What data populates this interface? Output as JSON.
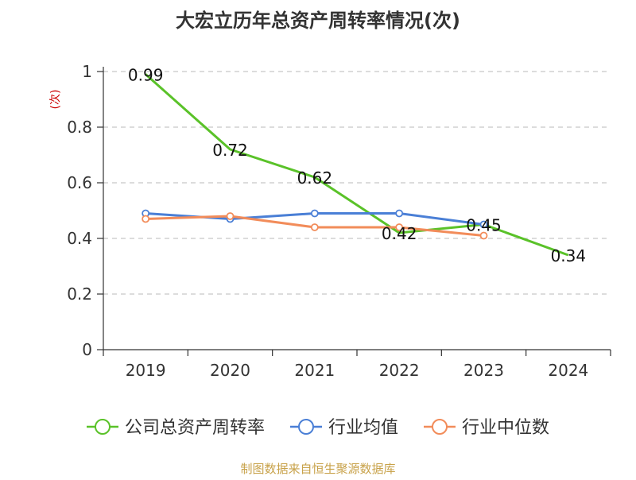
{
  "chart_data": {
    "type": "line",
    "title": "大宏立历年总资产周转率情况(次)",
    "ylabel": "(次)",
    "categories": [
      "2019",
      "2020",
      "2021",
      "2022",
      "2023",
      "2024"
    ],
    "ylim": [
      0,
      1
    ],
    "yticks": [
      0,
      0.2,
      0.4,
      0.6,
      0.8,
      1
    ],
    "ytick_labels": [
      "0",
      "0.2",
      "0.4",
      "0.6",
      "0.8",
      "1"
    ],
    "grid": true,
    "legend_position": "bottom",
    "series": [
      {
        "name": "公司总资产周转率",
        "color": "#5ac229",
        "values": [
          0.99,
          0.72,
          0.62,
          0.42,
          0.45,
          0.34
        ],
        "labels": [
          "0.99",
          "0.72",
          "0.62",
          "0.42",
          "0.45",
          "0.34"
        ],
        "markers": false
      },
      {
        "name": "行业均值",
        "color": "#4a7fd6",
        "values": [
          0.49,
          0.47,
          0.49,
          0.49,
          0.45,
          null
        ],
        "markers": true
      },
      {
        "name": "行业中位数",
        "color": "#f28c5a",
        "values": [
          0.47,
          0.48,
          0.44,
          0.44,
          0.41,
          null
        ],
        "markers": true
      }
    ]
  },
  "source": "制图数据来自恒生聚源数据库"
}
